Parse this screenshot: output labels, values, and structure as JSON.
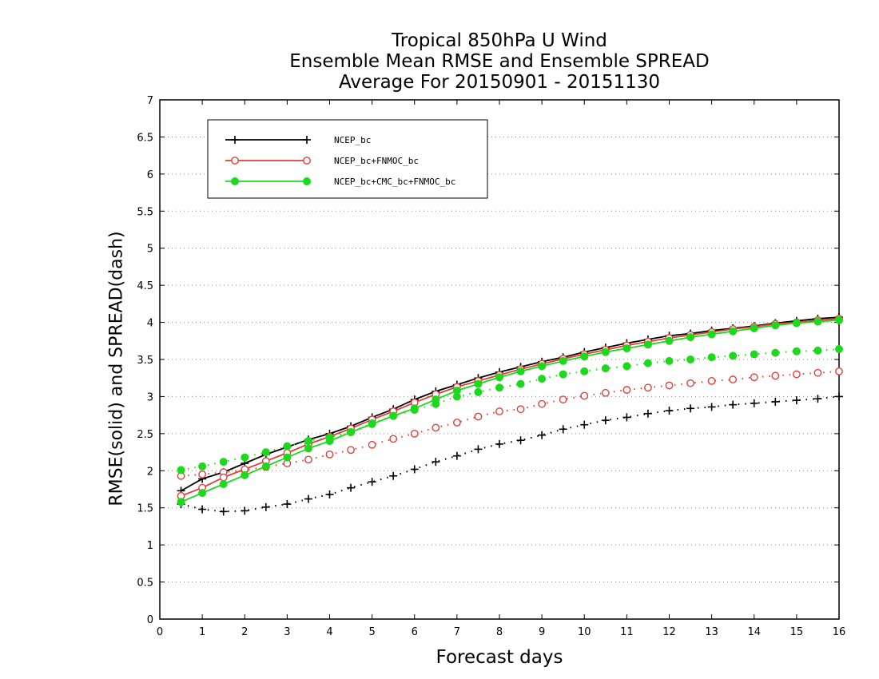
{
  "chart_data": {
    "type": "line",
    "title": [
      "Tropical 850hPa U Wind",
      "Ensemble Mean RMSE and Ensemble SPREAD",
      "Average For 20150901 - 20151130"
    ],
    "xlabel": "Forecast days",
    "ylabel": "RMSE(solid) and SPREAD(dash)",
    "xlim": [
      0,
      16
    ],
    "ylim": [
      0,
      7
    ],
    "xticks": [
      "0",
      "1",
      "2",
      "3",
      "4",
      "5",
      "6",
      "7",
      "8",
      "9",
      "10",
      "11",
      "12",
      "13",
      "14",
      "15",
      "16"
    ],
    "yticks": [
      "0",
      "0.5",
      "1",
      "1.5",
      "2",
      "2.5",
      "3",
      "3.5",
      "4",
      "4.5",
      "5",
      "5.5",
      "6",
      "6.5",
      "7"
    ],
    "grid": "horizontal-dotted",
    "legend_position": "top-left",
    "x": [
      0.5,
      1,
      1.5,
      2,
      2.5,
      3,
      3.5,
      4,
      4.5,
      5,
      5.5,
      6,
      6.5,
      7,
      7.5,
      8,
      8.5,
      9,
      9.5,
      10,
      10.5,
      11,
      11.5,
      12,
      12.5,
      13,
      13.5,
      14,
      14.5,
      15,
      15.5,
      16
    ],
    "series": [
      {
        "name": "NCEP_bc",
        "color": "#000000",
        "marker": "plus",
        "rmse": [
          1.73,
          1.89,
          1.98,
          2.1,
          2.22,
          2.32,
          2.42,
          2.5,
          2.6,
          2.72,
          2.83,
          2.96,
          3.07,
          3.16,
          3.25,
          3.33,
          3.4,
          3.47,
          3.53,
          3.6,
          3.66,
          3.72,
          3.77,
          3.82,
          3.85,
          3.89,
          3.92,
          3.95,
          3.99,
          4.02,
          4.05,
          4.07
        ],
        "spread": [
          1.55,
          1.48,
          1.45,
          1.46,
          1.51,
          1.55,
          1.62,
          1.68,
          1.77,
          1.85,
          1.93,
          2.02,
          2.12,
          2.2,
          2.29,
          2.36,
          2.41,
          2.48,
          2.56,
          2.62,
          2.68,
          2.72,
          2.77,
          2.81,
          2.84,
          2.86,
          2.89,
          2.91,
          2.93,
          2.95,
          2.97,
          3.0
        ]
      },
      {
        "name": "NCEP_bc+FNMOC_bc",
        "color": "#e0403a",
        "marker": "open-circle",
        "rmse": [
          1.66,
          1.77,
          1.91,
          2.02,
          2.13,
          2.24,
          2.36,
          2.46,
          2.57,
          2.69,
          2.8,
          2.92,
          3.03,
          3.13,
          3.21,
          3.29,
          3.37,
          3.44,
          3.51,
          3.57,
          3.63,
          3.69,
          3.74,
          3.79,
          3.83,
          3.87,
          3.91,
          3.94,
          3.98,
          4.0,
          4.03,
          4.05
        ],
        "spread": [
          1.93,
          1.95,
          1.98,
          2.01,
          2.05,
          2.1,
          2.15,
          2.22,
          2.28,
          2.35,
          2.43,
          2.5,
          2.58,
          2.65,
          2.73,
          2.8,
          2.83,
          2.9,
          2.96,
          3.01,
          3.05,
          3.09,
          3.12,
          3.15,
          3.18,
          3.21,
          3.23,
          3.26,
          3.28,
          3.3,
          3.32,
          3.34
        ]
      },
      {
        "name": "NCEP_bc+CMC_bc+FNMOC_bc",
        "color": "#1ed81e",
        "marker": "filled-circle",
        "rmse": [
          1.58,
          1.7,
          1.82,
          1.94,
          2.06,
          2.18,
          2.3,
          2.4,
          2.52,
          2.63,
          2.74,
          2.84,
          2.96,
          3.08,
          3.17,
          3.26,
          3.34,
          3.41,
          3.48,
          3.54,
          3.6,
          3.65,
          3.7,
          3.75,
          3.8,
          3.84,
          3.88,
          3.92,
          3.96,
          3.99,
          4.01,
          4.03
        ],
        "spread": [
          2.01,
          2.06,
          2.12,
          2.18,
          2.25,
          2.33,
          2.4,
          2.45,
          2.52,
          2.64,
          2.74,
          2.82,
          2.9,
          3.0,
          3.06,
          3.12,
          3.17,
          3.24,
          3.3,
          3.34,
          3.38,
          3.41,
          3.45,
          3.48,
          3.5,
          3.53,
          3.55,
          3.57,
          3.59,
          3.61,
          3.62,
          3.64
        ]
      }
    ]
  }
}
